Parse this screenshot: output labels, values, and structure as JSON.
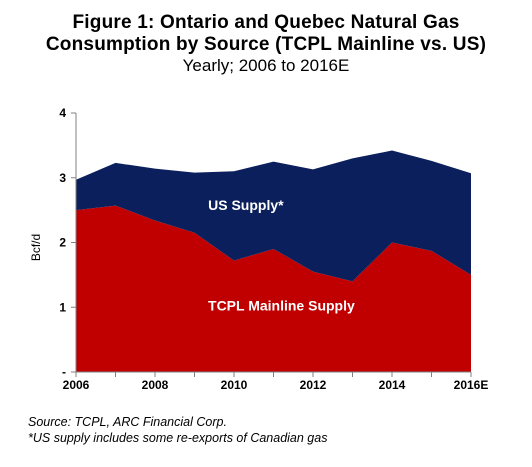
{
  "header": {
    "title_line1": "Figure 1: Ontario and Quebec Natural Gas",
    "title_line2": "Consumption by Source (TCPL Mainline vs. US)",
    "subtitle": "Yearly; 2006 to 2016E"
  },
  "footer": {
    "source": "Source: TCPL, ARC Financial Corp.",
    "note": "*US supply includes some re-exports of Canadian gas"
  },
  "colors": {
    "tcpl": "#c00000",
    "us": "#0b1f5c"
  },
  "chart_data": {
    "type": "area",
    "stacked": true,
    "ylabel": "Bcf/d",
    "ylim": [
      0,
      4
    ],
    "yticks": [
      "-",
      "1",
      "2",
      "3",
      "4"
    ],
    "xticks": [
      "2006",
      "2008",
      "2010",
      "2012",
      "2014",
      "2016E"
    ],
    "x": [
      2006,
      2007,
      2008,
      2009,
      2010,
      2011,
      2012,
      2013,
      2014,
      2015,
      2016
    ],
    "series": [
      {
        "name": "TCPL Mainline Supply",
        "values": [
          2.5,
          2.57,
          2.34,
          2.15,
          1.72,
          1.9,
          1.55,
          1.4,
          2.0,
          1.87,
          1.5
        ]
      },
      {
        "name": "US Supply*",
        "values": [
          0.47,
          0.66,
          0.8,
          0.93,
          1.38,
          1.35,
          1.58,
          1.9,
          1.42,
          1.39,
          1.57
        ]
      }
    ]
  }
}
